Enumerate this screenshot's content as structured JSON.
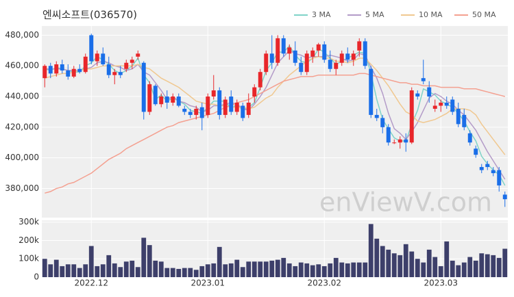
{
  "chart_data": {
    "type": "candlestick",
    "title": "엔씨소프트(036570)",
    "watermark": "enViewV.com",
    "legend": "top-right",
    "grid": true,
    "up_color": "#e8262a",
    "down_color": "#1a6ee8",
    "xlim": [
      -0.5,
      79.5
    ],
    "xticks": [
      {
        "value": 8,
        "label": "2022.12"
      },
      {
        "value": 28,
        "label": "2023.01"
      },
      {
        "value": 48,
        "label": "2023.02"
      },
      {
        "value": 68,
        "label": "2023.03"
      }
    ],
    "ylim": [
      361000,
      486000
    ],
    "yticks": [
      {
        "value": 380000,
        "label": "380,000"
      },
      {
        "value": 400000,
        "label": "400,000"
      },
      {
        "value": 420000,
        "label": "420,000"
      },
      {
        "value": 440000,
        "label": "440,000"
      },
      {
        "value": 460000,
        "label": "460,000"
      },
      {
        "value": 480000,
        "label": "480,000"
      }
    ],
    "open": [
      452000,
      460000,
      455000,
      461000,
      457000,
      453000,
      458000,
      456000,
      480000,
      463000,
      468000,
      461000,
      454000,
      456000,
      458000,
      462000,
      466000,
      462000,
      430000,
      447000,
      435000,
      440000,
      436000,
      440000,
      432000,
      430000,
      428000,
      433000,
      428000,
      440000,
      444000,
      428000,
      440000,
      430000,
      434000,
      428000,
      440000,
      446000,
      456000,
      468000,
      462000,
      478000,
      468000,
      470000,
      462000,
      456000,
      466000,
      470000,
      474000,
      464000,
      458000,
      462000,
      468000,
      464000,
      470000,
      476000,
      458000,
      428000,
      426000,
      420000,
      410000,
      410000,
      412000,
      410000,
      442000,
      452000,
      446000,
      432000,
      434000,
      436000,
      438000,
      432000,
      428000,
      416000,
      406000,
      394000,
      396000,
      392000,
      392000,
      376000
    ],
    "high": [
      461000,
      462000,
      463000,
      464000,
      461000,
      460000,
      461000,
      468000,
      481000,
      470000,
      472000,
      466000,
      458000,
      460000,
      464000,
      466000,
      470000,
      463000,
      450000,
      448000,
      442000,
      444000,
      442000,
      442000,
      434000,
      432000,
      434000,
      436000,
      442000,
      454000,
      446000,
      440000,
      444000,
      438000,
      436000,
      442000,
      448000,
      458000,
      470000,
      480000,
      480000,
      480000,
      474000,
      476000,
      466000,
      470000,
      472000,
      475000,
      476000,
      470000,
      464000,
      470000,
      472000,
      470000,
      478000,
      478000,
      460000,
      432000,
      428000,
      422000,
      412000,
      414000,
      416000,
      446000,
      444000,
      464000,
      450000,
      438000,
      438000,
      440000,
      440000,
      436000,
      432000,
      418000,
      408000,
      396000,
      398000,
      394000,
      394000,
      378000
    ],
    "low": [
      446000,
      452000,
      453000,
      455000,
      451000,
      452000,
      455000,
      455000,
      461000,
      460000,
      460000,
      452000,
      448000,
      452000,
      456000,
      458000,
      464000,
      425000,
      428000,
      434000,
      433000,
      432000,
      434000,
      433000,
      428000,
      426000,
      425000,
      418000,
      426000,
      438000,
      425000,
      426000,
      428000,
      428000,
      424000,
      426000,
      436000,
      444000,
      454000,
      458000,
      460000,
      466000,
      464000,
      460000,
      454000,
      454000,
      462000,
      466000,
      462000,
      456000,
      454000,
      460000,
      462000,
      460000,
      466000,
      458000,
      426000,
      424000,
      416000,
      408000,
      409000,
      406000,
      404000,
      409000,
      438000,
      448000,
      436000,
      430000,
      430000,
      432000,
      428000,
      420000,
      418000,
      408000,
      400000,
      390000,
      392000,
      388000,
      378000,
      368000
    ],
    "close": [
      460000,
      455000,
      461000,
      457000,
      453000,
      458000,
      456000,
      466000,
      463000,
      468000,
      461000,
      454000,
      456000,
      454000,
      462000,
      464000,
      468000,
      430000,
      448000,
      435000,
      440000,
      436000,
      440000,
      434000,
      430000,
      428000,
      432000,
      426000,
      440000,
      444000,
      428000,
      438000,
      430000,
      436000,
      426000,
      436000,
      446000,
      456000,
      468000,
      462000,
      478000,
      468000,
      472000,
      462000,
      456000,
      468000,
      470000,
      474000,
      464000,
      458000,
      462000,
      468000,
      464000,
      468000,
      476000,
      460000,
      428000,
      426000,
      420000,
      410000,
      410000,
      412000,
      410000,
      444000,
      440000,
      450000,
      440000,
      434000,
      436000,
      434000,
      430000,
      422000,
      420000,
      410000,
      402000,
      392000,
      394000,
      390000,
      382000,
      373000
    ],
    "series": [
      {
        "name": "3 MA",
        "color": "#7fd3c8",
        "values": [
          458000,
          457000,
          459000,
          458000,
          457000,
          456000,
          456000,
          460000,
          462000,
          466000,
          464000,
          461000,
          457000,
          455000,
          457000,
          460000,
          465000,
          454000,
          449000,
          438000,
          441000,
          437000,
          439000,
          437000,
          435000,
          431000,
          430000,
          429000,
          433000,
          437000,
          437000,
          437000,
          432000,
          435000,
          431000,
          433000,
          436000,
          446000,
          457000,
          462000,
          469000,
          469000,
          473000,
          467000,
          463000,
          462000,
          465000,
          471000,
          469000,
          465000,
          461000,
          463000,
          465000,
          467000,
          469000,
          468000,
          455000,
          438000,
          425000,
          419000,
          413000,
          411000,
          411000,
          422000,
          431000,
          445000,
          443000,
          441000,
          437000,
          435000,
          433000,
          429000,
          424000,
          417000,
          411000,
          401000,
          396000,
          392000,
          389000,
          382000
        ]
      },
      {
        "name": "5 MA",
        "color": "#b39bc8",
        "values": [
          458000,
          458000,
          458000,
          458000,
          457000,
          457000,
          457000,
          458000,
          459000,
          462000,
          463000,
          462000,
          460000,
          459000,
          457000,
          458000,
          461000,
          456000,
          454000,
          449000,
          444000,
          438000,
          440000,
          437000,
          436000,
          434000,
          433000,
          430000,
          431000,
          434000,
          434000,
          435000,
          436000,
          435000,
          432000,
          431000,
          435000,
          440000,
          446000,
          454000,
          462000,
          466000,
          470000,
          468000,
          467000,
          465000,
          466000,
          466000,
          466000,
          467000,
          466000,
          465000,
          463000,
          464000,
          468000,
          467000,
          459000,
          452000,
          442000,
          429000,
          419000,
          416000,
          412000,
          417000,
          423000,
          431000,
          439000,
          442000,
          440000,
          437000,
          435000,
          431000,
          428000,
          423000,
          418000,
          411000,
          404000,
          398000,
          392000,
          386000
        ]
      },
      {
        "name": "10 MA",
        "color": "#f0c890",
        "values": [
          452000,
          453000,
          454000,
          455000,
          455000,
          456000,
          457000,
          458000,
          458000,
          459000,
          460000,
          460000,
          460000,
          460000,
          460000,
          460000,
          461000,
          459000,
          458000,
          455000,
          452000,
          450000,
          448000,
          446000,
          443000,
          440000,
          437000,
          436000,
          435000,
          435000,
          434000,
          434000,
          433000,
          433000,
          433000,
          432000,
          433000,
          436000,
          439000,
          441000,
          446000,
          450000,
          454000,
          457000,
          460000,
          463000,
          465000,
          466000,
          465000,
          465000,
          463000,
          463000,
          462000,
          463000,
          465000,
          465000,
          461000,
          457000,
          452000,
          447000,
          441000,
          435000,
          430000,
          428000,
          424000,
          423000,
          424000,
          425000,
          427000,
          429000,
          432000,
          432000,
          432000,
          431000,
          428000,
          422000,
          417000,
          412000,
          407000,
          402000
        ]
      },
      {
        "name": "50 MA",
        "color": "#f4a090",
        "values": [
          377000,
          378000,
          380000,
          381000,
          383000,
          384000,
          386000,
          388000,
          390000,
          393000,
          396000,
          399000,
          401000,
          403000,
          406000,
          408000,
          410000,
          412000,
          414000,
          416000,
          418000,
          420000,
          421000,
          423000,
          424000,
          425000,
          426000,
          427000,
          428000,
          429000,
          431000,
          433000,
          434000,
          436000,
          437000,
          438000,
          440000,
          442000,
          444000,
          446000,
          448000,
          450000,
          451000,
          452000,
          453000,
          453000,
          453000,
          454000,
          454000,
          454000,
          454000,
          454000,
          454000,
          454000,
          455000,
          455000,
          454000,
          453000,
          452000,
          451000,
          450000,
          449000,
          449000,
          448000,
          448000,
          447000,
          447000,
          447000,
          446000,
          446000,
          446000,
          446000,
          445000,
          445000,
          445000,
          444000,
          443000,
          442000,
          441000,
          440000
        ]
      }
    ],
    "volume": {
      "color": "#3d3f6a",
      "ylim": [
        0,
        310000
      ],
      "yticks": [
        0,
        {
          "value": 100000,
          "label": "100k"
        },
        {
          "value": 200000,
          "label": "200k"
        },
        {
          "value": 300000,
          "label": "300k"
        }
      ],
      "values": [
        100000,
        70000,
        95000,
        60000,
        70000,
        70000,
        50000,
        70000,
        170000,
        60000,
        70000,
        120000,
        75000,
        55000,
        85000,
        90000,
        55000,
        215000,
        175000,
        90000,
        85000,
        50000,
        50000,
        45000,
        50000,
        50000,
        40000,
        60000,
        70000,
        75000,
        165000,
        70000,
        75000,
        95000,
        55000,
        85000,
        85000,
        85000,
        85000,
        90000,
        95000,
        105000,
        75000,
        60000,
        80000,
        75000,
        65000,
        70000,
        60000,
        75000,
        105000,
        80000,
        75000,
        80000,
        80000,
        80000,
        290000,
        210000,
        170000,
        150000,
        130000,
        120000,
        180000,
        140000,
        100000,
        80000,
        150000,
        110000,
        60000,
        195000,
        90000,
        65000,
        80000,
        110000,
        90000,
        130000,
        125000,
        120000,
        105000,
        155000
      ]
    }
  }
}
